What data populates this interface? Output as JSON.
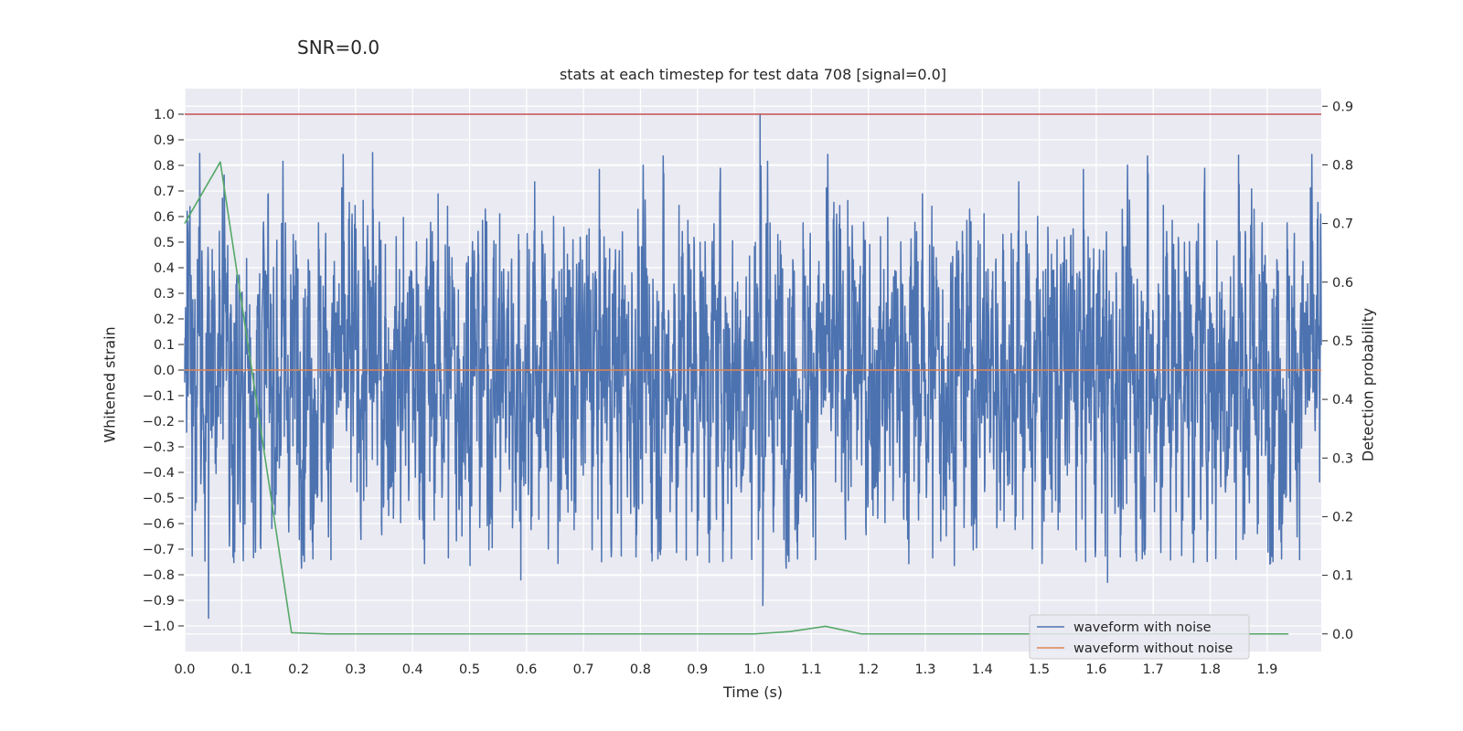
{
  "chart_data": {
    "type": "line",
    "suptitle": "SNR=0.0",
    "title": "stats at each timestep for test data 708 [signal=0.0]",
    "xlabel": "Time (s)",
    "ylabel_left": "Whitened strain",
    "ylabel_right": "Detection probability",
    "xlim": [
      0.0,
      1.995
    ],
    "ylim_left": [
      -1.1,
      1.1
    ],
    "ylim_right": [
      -0.03,
      0.93
    ],
    "x_ticks": [
      "0.0",
      "0.1",
      "0.2",
      "0.3",
      "0.4",
      "0.5",
      "0.6",
      "0.7",
      "0.8",
      "0.9",
      "1.0",
      "1.1",
      "1.2",
      "1.3",
      "1.4",
      "1.5",
      "1.6",
      "1.7",
      "1.8",
      "1.9"
    ],
    "y_left_ticks": [
      "−1.0",
      "−0.9",
      "−0.8",
      "−0.7",
      "−0.6",
      "−0.5",
      "−0.4",
      "−0.3",
      "−0.2",
      "−0.1",
      "0.0",
      "0.1",
      "0.2",
      "0.3",
      "0.4",
      "0.5",
      "0.6",
      "0.7",
      "0.8",
      "0.9",
      "1.0"
    ],
    "y_right_ticks": [
      "0.0",
      "0.1",
      "0.2",
      "0.3",
      "0.4",
      "0.5",
      "0.6",
      "0.7",
      "0.8",
      "0.9"
    ],
    "grid": true,
    "legend_position": "lower-right",
    "series": [
      {
        "name": "waveform with noise",
        "axis": "left",
        "color": "#4c72b0",
        "style": "dense noise",
        "n_samples": 4096,
        "x_range": [
          0.0,
          1.995
        ],
        "amplitude_range": [
          -0.97,
          1.0
        ],
        "notable_points": [
          {
            "x": 0.042,
            "y": -0.97
          },
          {
            "x": 0.33,
            "y": 0.85
          },
          {
            "x": 0.59,
            "y": -0.82
          },
          {
            "x": 1.01,
            "y": 1.0
          },
          {
            "x": 1.015,
            "y": -0.92
          },
          {
            "x": 1.62,
            "y": -0.83
          },
          {
            "x": 1.85,
            "y": 0.84
          }
        ]
      },
      {
        "name": "waveform without noise",
        "axis": "left",
        "color": "#dd8452",
        "x": [
          0.0,
          1.995
        ],
        "y": [
          0.0,
          0.0
        ]
      },
      {
        "axis": "right",
        "color": "#55a868",
        "x": [
          0.0,
          0.0625,
          0.1875,
          0.25,
          0.3125,
          0.375,
          0.4375,
          0.5,
          0.5625,
          0.625,
          0.6875,
          0.75,
          0.8125,
          0.875,
          0.9375,
          1.0,
          1.0625,
          1.125,
          1.1875,
          1.25,
          1.3125,
          1.375,
          1.4375,
          1.5,
          1.5625,
          1.625,
          1.6875,
          1.75,
          1.8125,
          1.875,
          1.9375
        ],
        "y": [
          0.7,
          0.805,
          0.002,
          0.0,
          0.0,
          0.0,
          0.0,
          0.0,
          0.0,
          0.0,
          0.0,
          0.0,
          0.0,
          0.0,
          0.0,
          0.0,
          0.004,
          0.013,
          0.0,
          0.0,
          0.0,
          0.0,
          0.0,
          0.0,
          0.0,
          0.0,
          0.0,
          0.0,
          0.0,
          0.0,
          0.0
        ]
      },
      {
        "axis": "left",
        "color": "#c44e52",
        "x": [
          0.0,
          1.995
        ],
        "y": [
          1.0,
          1.0
        ]
      }
    ]
  }
}
